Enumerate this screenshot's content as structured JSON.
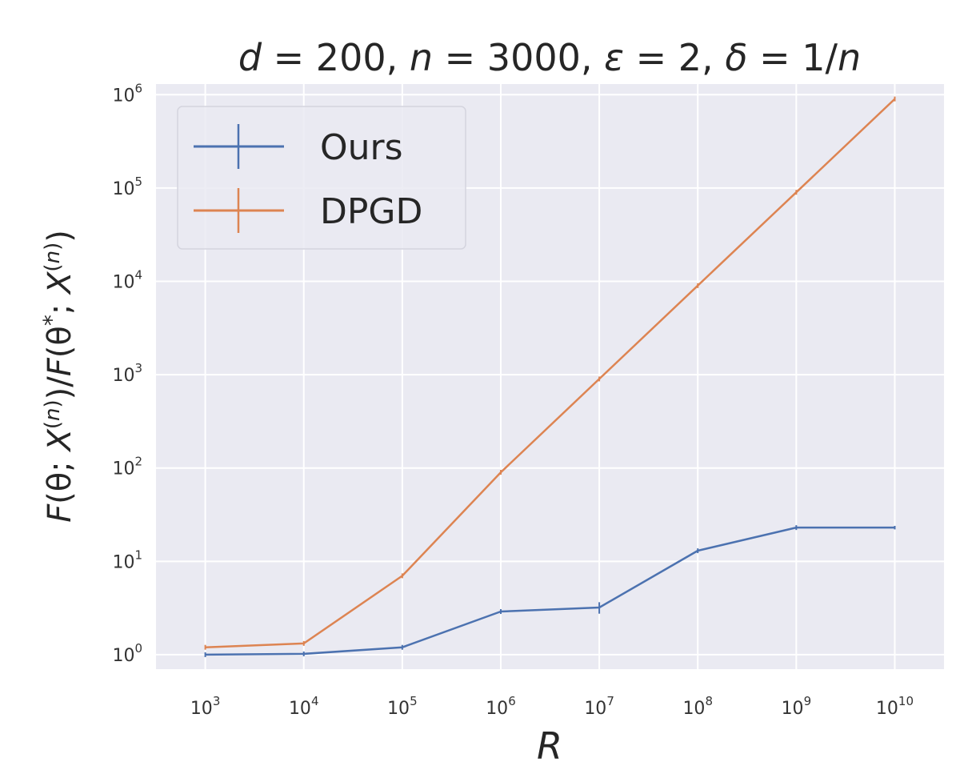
{
  "chart_data": {
    "type": "line",
    "title": "d = 200, n = 3000, ε = 2, δ = 1/n",
    "xlabel": "R",
    "ylabel": "F(θ; X(n))/F(θ*; X(n))",
    "x": [
      1000,
      10000,
      100000,
      1000000,
      10000000,
      100000000,
      1000000000,
      10000000000
    ],
    "x_scale": "log",
    "y_scale": "log",
    "xlim": [
      316,
      31600000000
    ],
    "ylim": [
      0.7,
      1300000
    ],
    "grid": true,
    "legend_position": "top-left",
    "x_ticks": [
      {
        "base": "10",
        "exp": "3"
      },
      {
        "base": "10",
        "exp": "4"
      },
      {
        "base": "10",
        "exp": "5"
      },
      {
        "base": "10",
        "exp": "6"
      },
      {
        "base": "10",
        "exp": "7"
      },
      {
        "base": "10",
        "exp": "8"
      },
      {
        "base": "10",
        "exp": "9"
      },
      {
        "base": "10",
        "exp": "10"
      }
    ],
    "y_ticks": [
      {
        "base": "10",
        "exp": "0"
      },
      {
        "base": "10",
        "exp": "1"
      },
      {
        "base": "10",
        "exp": "2"
      },
      {
        "base": "10",
        "exp": "3"
      },
      {
        "base": "10",
        "exp": "4"
      },
      {
        "base": "10",
        "exp": "5"
      },
      {
        "base": "10",
        "exp": "6"
      }
    ],
    "series": [
      {
        "name": "Ours",
        "color": "#4c72b0",
        "values": [
          1.0,
          1.02,
          1.2,
          2.9,
          3.2,
          13,
          23,
          23
        ],
        "errors": [
          0.02,
          0.02,
          0.04,
          0.1,
          0.45,
          0.4,
          0.5,
          1.0
        ]
      },
      {
        "name": "DPGD",
        "color": "#dd8452",
        "values": [
          1.2,
          1.32,
          7,
          90,
          900,
          9000,
          90000,
          900000
        ],
        "errors": [
          0,
          0,
          0,
          0,
          0,
          0,
          0,
          0
        ]
      }
    ]
  }
}
